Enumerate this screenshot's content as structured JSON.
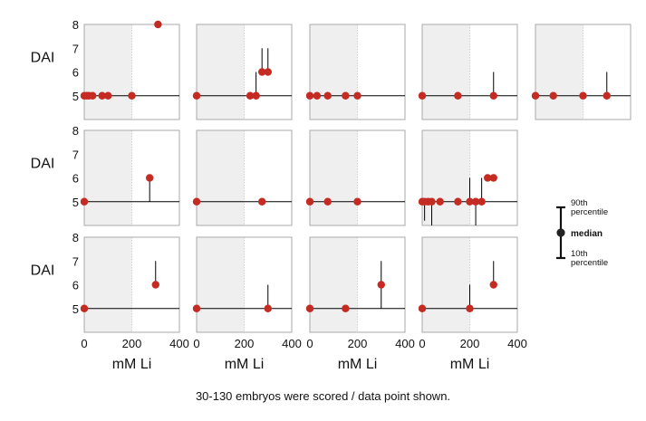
{
  "figure": {
    "caption": "30-130 embryos were scored / data point shown.",
    "ylabel": "DAI",
    "xlabel": "mM Li",
    "xticks": [
      "0",
      "200",
      "400"
    ],
    "yticks": [
      "5",
      "6",
      "7",
      "8"
    ],
    "legend": {
      "p90": "90th percentile",
      "median": "median",
      "p10": "10th percentile"
    },
    "colors": {
      "point": "#c42b22",
      "shade": "#efefef",
      "baseline": "#000000",
      "axis": "#a9a9a9"
    }
  },
  "chart_data": [
    {
      "type": "scatter",
      "panel": "r1c1",
      "xlim": [
        0,
        400
      ],
      "ylim": [
        4,
        8
      ],
      "shade_x": [
        0,
        200
      ],
      "points": [
        {
          "x": 0,
          "y": 5
        },
        {
          "x": 10,
          "y": 5
        },
        {
          "x": 20,
          "y": 5
        },
        {
          "x": 35,
          "y": 5
        },
        {
          "x": 75,
          "y": 5
        },
        {
          "x": 100,
          "y": 5
        },
        {
          "x": 200,
          "y": 5
        },
        {
          "x": 310,
          "y": 8
        }
      ]
    },
    {
      "type": "scatter",
      "panel": "r1c2",
      "xlim": [
        0,
        400
      ],
      "ylim": [
        4,
        8
      ],
      "shade_x": [
        0,
        200
      ],
      "points": [
        {
          "x": 0,
          "y": 5
        },
        {
          "x": 225,
          "y": 5
        },
        {
          "x": 250,
          "y": 5,
          "hi": 6
        },
        {
          "x": 275,
          "y": 6,
          "hi": 7
        },
        {
          "x": 300,
          "y": 6,
          "hi": 7
        }
      ]
    },
    {
      "type": "scatter",
      "panel": "r1c3",
      "xlim": [
        0,
        400
      ],
      "ylim": [
        4,
        8
      ],
      "shade_x": [
        0,
        200
      ],
      "points": [
        {
          "x": 0,
          "y": 5
        },
        {
          "x": 30,
          "y": 5
        },
        {
          "x": 75,
          "y": 5
        },
        {
          "x": 150,
          "y": 5
        },
        {
          "x": 200,
          "y": 5
        }
      ]
    },
    {
      "type": "scatter",
      "panel": "r1c4",
      "xlim": [
        0,
        400
      ],
      "ylim": [
        4,
        8
      ],
      "shade_x": [
        0,
        200
      ],
      "points": [
        {
          "x": 0,
          "y": 5
        },
        {
          "x": 150,
          "y": 5
        },
        {
          "x": 300,
          "y": 5,
          "hi": 6
        }
      ]
    },
    {
      "type": "scatter",
      "panel": "r1c5",
      "xlim": [
        0,
        400
      ],
      "ylim": [
        4,
        8
      ],
      "shade_x": [
        0,
        200
      ],
      "points": [
        {
          "x": 0,
          "y": 5
        },
        {
          "x": 75,
          "y": 5
        },
        {
          "x": 200,
          "y": 5
        },
        {
          "x": 300,
          "y": 5,
          "hi": 6
        }
      ]
    },
    {
      "type": "scatter",
      "panel": "r2c1",
      "xlim": [
        0,
        400
      ],
      "ylim": [
        4,
        8
      ],
      "shade_x": [
        0,
        200
      ],
      "points": [
        {
          "x": 0,
          "y": 5
        },
        {
          "x": 275,
          "y": 6,
          "lo": 5
        }
      ]
    },
    {
      "type": "scatter",
      "panel": "r2c2",
      "xlim": [
        0,
        400
      ],
      "ylim": [
        4,
        8
      ],
      "shade_x": [
        0,
        200
      ],
      "points": [
        {
          "x": 0,
          "y": 5
        },
        {
          "x": 275,
          "y": 5
        }
      ]
    },
    {
      "type": "scatter",
      "panel": "r2c3",
      "xlim": [
        0,
        400
      ],
      "ylim": [
        4,
        8
      ],
      "shade_x": [
        0,
        200
      ],
      "points": [
        {
          "x": 0,
          "y": 5
        },
        {
          "x": 75,
          "y": 5
        },
        {
          "x": 200,
          "y": 5
        }
      ]
    },
    {
      "type": "scatter",
      "panel": "r2c4",
      "xlim": [
        0,
        400
      ],
      "ylim": [
        4,
        8
      ],
      "shade_x": [
        0,
        200
      ],
      "points": [
        {
          "x": 0,
          "y": 5
        },
        {
          "x": 10,
          "y": 5,
          "lo": 4.2
        },
        {
          "x": 25,
          "y": 5
        },
        {
          "x": 40,
          "y": 5,
          "lo": 4
        },
        {
          "x": 75,
          "y": 5
        },
        {
          "x": 150,
          "y": 5
        },
        {
          "x": 200,
          "y": 5,
          "hi": 6
        },
        {
          "x": 225,
          "y": 5,
          "lo": 4
        },
        {
          "x": 250,
          "y": 5,
          "hi": 6
        },
        {
          "x": 275,
          "y": 6
        },
        {
          "x": 300,
          "y": 6
        }
      ]
    },
    {
      "type": "scatter",
      "panel": "r3c1",
      "xlim": [
        0,
        400
      ],
      "ylim": [
        4,
        8
      ],
      "shade_x": [
        0,
        200
      ],
      "points": [
        {
          "x": 0,
          "y": 5
        },
        {
          "x": 300,
          "y": 6,
          "hi": 7
        }
      ]
    },
    {
      "type": "scatter",
      "panel": "r3c2",
      "xlim": [
        0,
        400
      ],
      "ylim": [
        4,
        8
      ],
      "shade_x": [
        0,
        200
      ],
      "points": [
        {
          "x": 0,
          "y": 5
        },
        {
          "x": 300,
          "y": 5,
          "hi": 6
        }
      ]
    },
    {
      "type": "scatter",
      "panel": "r3c3",
      "xlim": [
        0,
        400
      ],
      "ylim": [
        4,
        8
      ],
      "shade_x": [
        0,
        200
      ],
      "points": [
        {
          "x": 0,
          "y": 5
        },
        {
          "x": 150,
          "y": 5
        },
        {
          "x": 300,
          "y": 6,
          "lo": 5,
          "hi": 7
        }
      ]
    },
    {
      "type": "scatter",
      "panel": "r3c4",
      "xlim": [
        0,
        400
      ],
      "ylim": [
        4,
        8
      ],
      "shade_x": [
        0,
        200
      ],
      "points": [
        {
          "x": 0,
          "y": 5
        },
        {
          "x": 200,
          "y": 5,
          "hi": 6
        },
        {
          "x": 300,
          "y": 6,
          "hi": 7
        }
      ]
    }
  ]
}
